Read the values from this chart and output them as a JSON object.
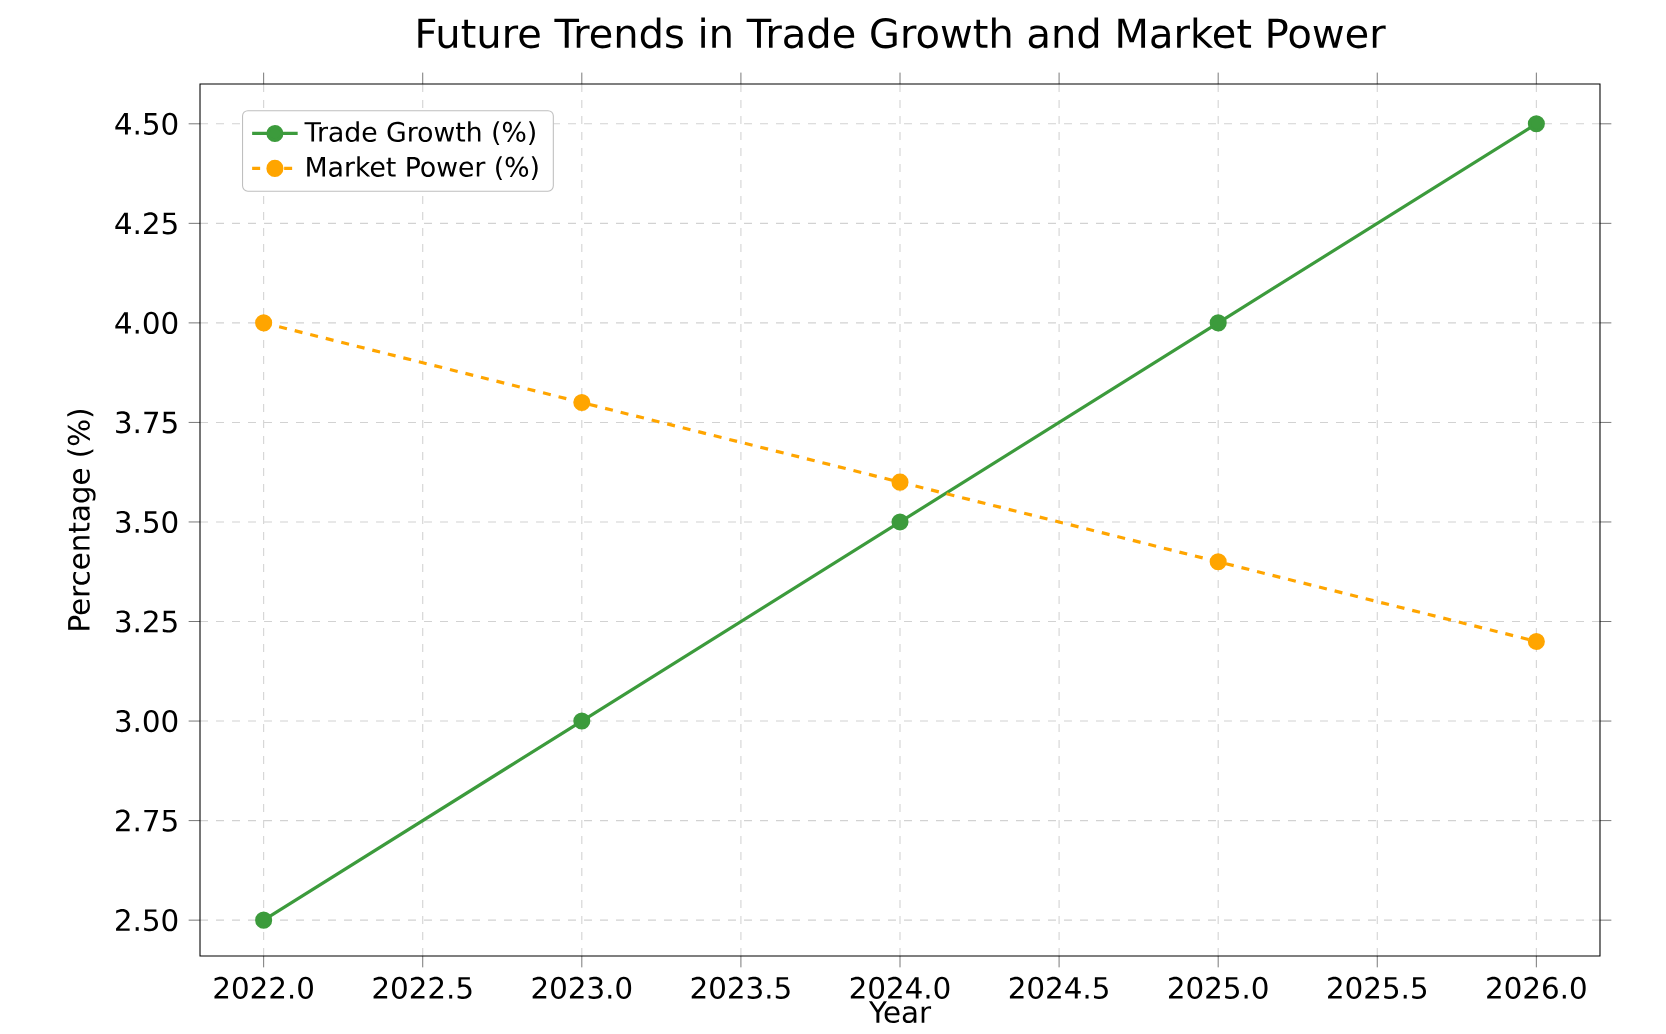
{
  "chart_data": {
    "type": "line",
    "title": "Future Trends in Trade Growth and Market Power",
    "xlabel": "Year",
    "ylabel": "Percentage (%)",
    "x": [
      2022,
      2023,
      2024,
      2025,
      2026
    ],
    "series": [
      {
        "name": "Trade Growth (%)",
        "color": "#3c9b3c",
        "line_style": "solid",
        "values": [
          2.5,
          3.0,
          3.5,
          4.0,
          4.5
        ]
      },
      {
        "name": "Market Power (%)",
        "color": "#ffa500",
        "line_style": "dashed",
        "values": [
          4.0,
          3.8,
          3.6,
          3.4,
          3.2
        ]
      }
    ],
    "xlim": [
      2021.8,
      2026.2
    ],
    "ylim": [
      2.41,
      4.6
    ],
    "xticks": [
      {
        "value": 2022,
        "label": "2022.0"
      },
      {
        "value": 2022.5,
        "label": "2022.5"
      },
      {
        "value": 2023,
        "label": "2023.0"
      },
      {
        "value": 2023.5,
        "label": "2023.5"
      },
      {
        "value": 2024,
        "label": "2024.0"
      },
      {
        "value": 2024.5,
        "label": "2024.5"
      },
      {
        "value": 2025,
        "label": "2025.0"
      },
      {
        "value": 2025.5,
        "label": "2025.5"
      },
      {
        "value": 2026,
        "label": "2026.0"
      }
    ],
    "yticks": [
      {
        "value": 2.5,
        "label": "2.50"
      },
      {
        "value": 2.75,
        "label": "2.75"
      },
      {
        "value": 3.0,
        "label": "3.00"
      },
      {
        "value": 3.25,
        "label": "3.25"
      },
      {
        "value": 3.5,
        "label": "3.50"
      },
      {
        "value": 3.75,
        "label": "3.75"
      },
      {
        "value": 4.0,
        "label": "4.00"
      },
      {
        "value": 4.25,
        "label": "4.25"
      },
      {
        "value": 4.5,
        "label": "4.50"
      }
    ],
    "grid": true,
    "legend": "top left",
    "marker": "circle"
  }
}
